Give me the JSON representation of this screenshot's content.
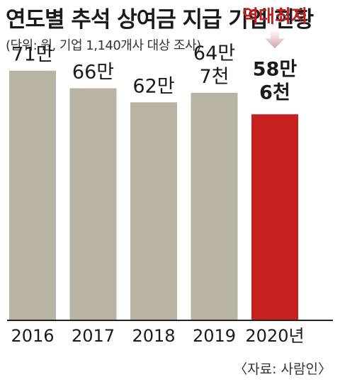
{
  "title": "연도별 추석 상여금 지급 기업 현황",
  "subtitle": "(단위: 원, 기업 1,140개사 대상 조사)",
  "source": "〈자료: 사람인〉",
  "annotation": "역대최저",
  "colors": {
    "bar": "#b8b3a2",
    "highlight": "#c8201f",
    "annotation": "#c0201f",
    "arrow": "#d9a3a3",
    "baseline": "#222222"
  },
  "chart_data": {
    "type": "bar",
    "categories": [
      "2016",
      "2017",
      "2018",
      "2019",
      "2020년"
    ],
    "values": [
      710000,
      660000,
      620000,
      647000,
      586000
    ],
    "value_labels": [
      [
        "71만"
      ],
      [
        "66만"
      ],
      [
        "62만"
      ],
      [
        "64만",
        "7천"
      ],
      [
        "58만",
        "6천"
      ]
    ],
    "highlight_index": 4,
    "ylim": [
      0,
      780000
    ]
  }
}
